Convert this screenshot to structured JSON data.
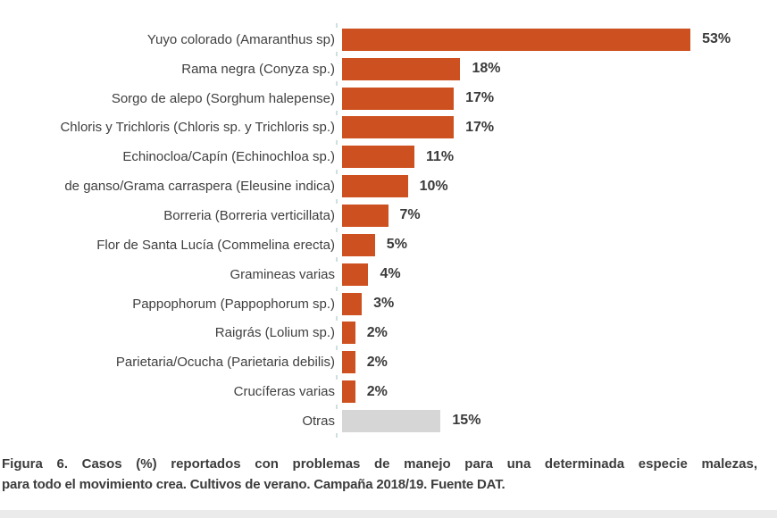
{
  "chart_data": {
    "type": "bar",
    "orientation": "horizontal",
    "title": "",
    "xlabel": "",
    "ylabel": "",
    "unit": "%",
    "xlim": [
      0,
      55
    ],
    "grid": false,
    "legend": null,
    "categories": [
      "Yuyo colorado (Amaranthus sp)",
      "Rama negra (Conyza sp.)",
      "Sorgo de alepo (Sorghum halepense)",
      "Chloris y Trichloris (Chloris sp. y Trichloris sp.)",
      "Echinocloa/Capín (Echinochloa sp.)",
      "de ganso/Grama carraspera (Eleusine indica)",
      "Borreria (Borreria verticillata)",
      "Flor de Santa Lucía (Commelina erecta)",
      "Gramineas varias",
      "Pappophorum (Pappophorum sp.)",
      "Raigrás (Lolium sp.)",
      "Parietaria/Ocucha (Parietaria debilis)",
      "Crucíferas varias",
      "Otras"
    ],
    "values": [
      53,
      18,
      17,
      17,
      11,
      10,
      7,
      5,
      4,
      3,
      2,
      2,
      2,
      15
    ],
    "value_labels": [
      "53%",
      "18%",
      "17%",
      "17%",
      "11%",
      "10%",
      "7%",
      "5%",
      "4%",
      "3%",
      "2%",
      "2%",
      "2%",
      "15%"
    ],
    "bar_colors": [
      "#cd5120",
      "#cd5120",
      "#cd5120",
      "#cd5120",
      "#cd5120",
      "#cd5120",
      "#cd5120",
      "#cd5120",
      "#cd5120",
      "#cd5120",
      "#cd5120",
      "#cd5120",
      "#cd5120",
      "#d6d6d6"
    ]
  },
  "colors": {
    "primary_bar": "#cd5120",
    "other_bar": "#d6d6d6",
    "label_text": "#3f3f3f",
    "value_text": "#3a3a3a",
    "caption_text": "#3c3c3c",
    "axis_tick": "#cfdfdf",
    "bottom_strip": "#ebebeb"
  },
  "caption": {
    "line1": "Figura 6. Casos (%) reportados con problemas de manejo para una determinada especie malezas,",
    "line2": "para todo el movimiento crea. Cultivos de verano. Campaña 2018/19. Fuente DAT."
  }
}
